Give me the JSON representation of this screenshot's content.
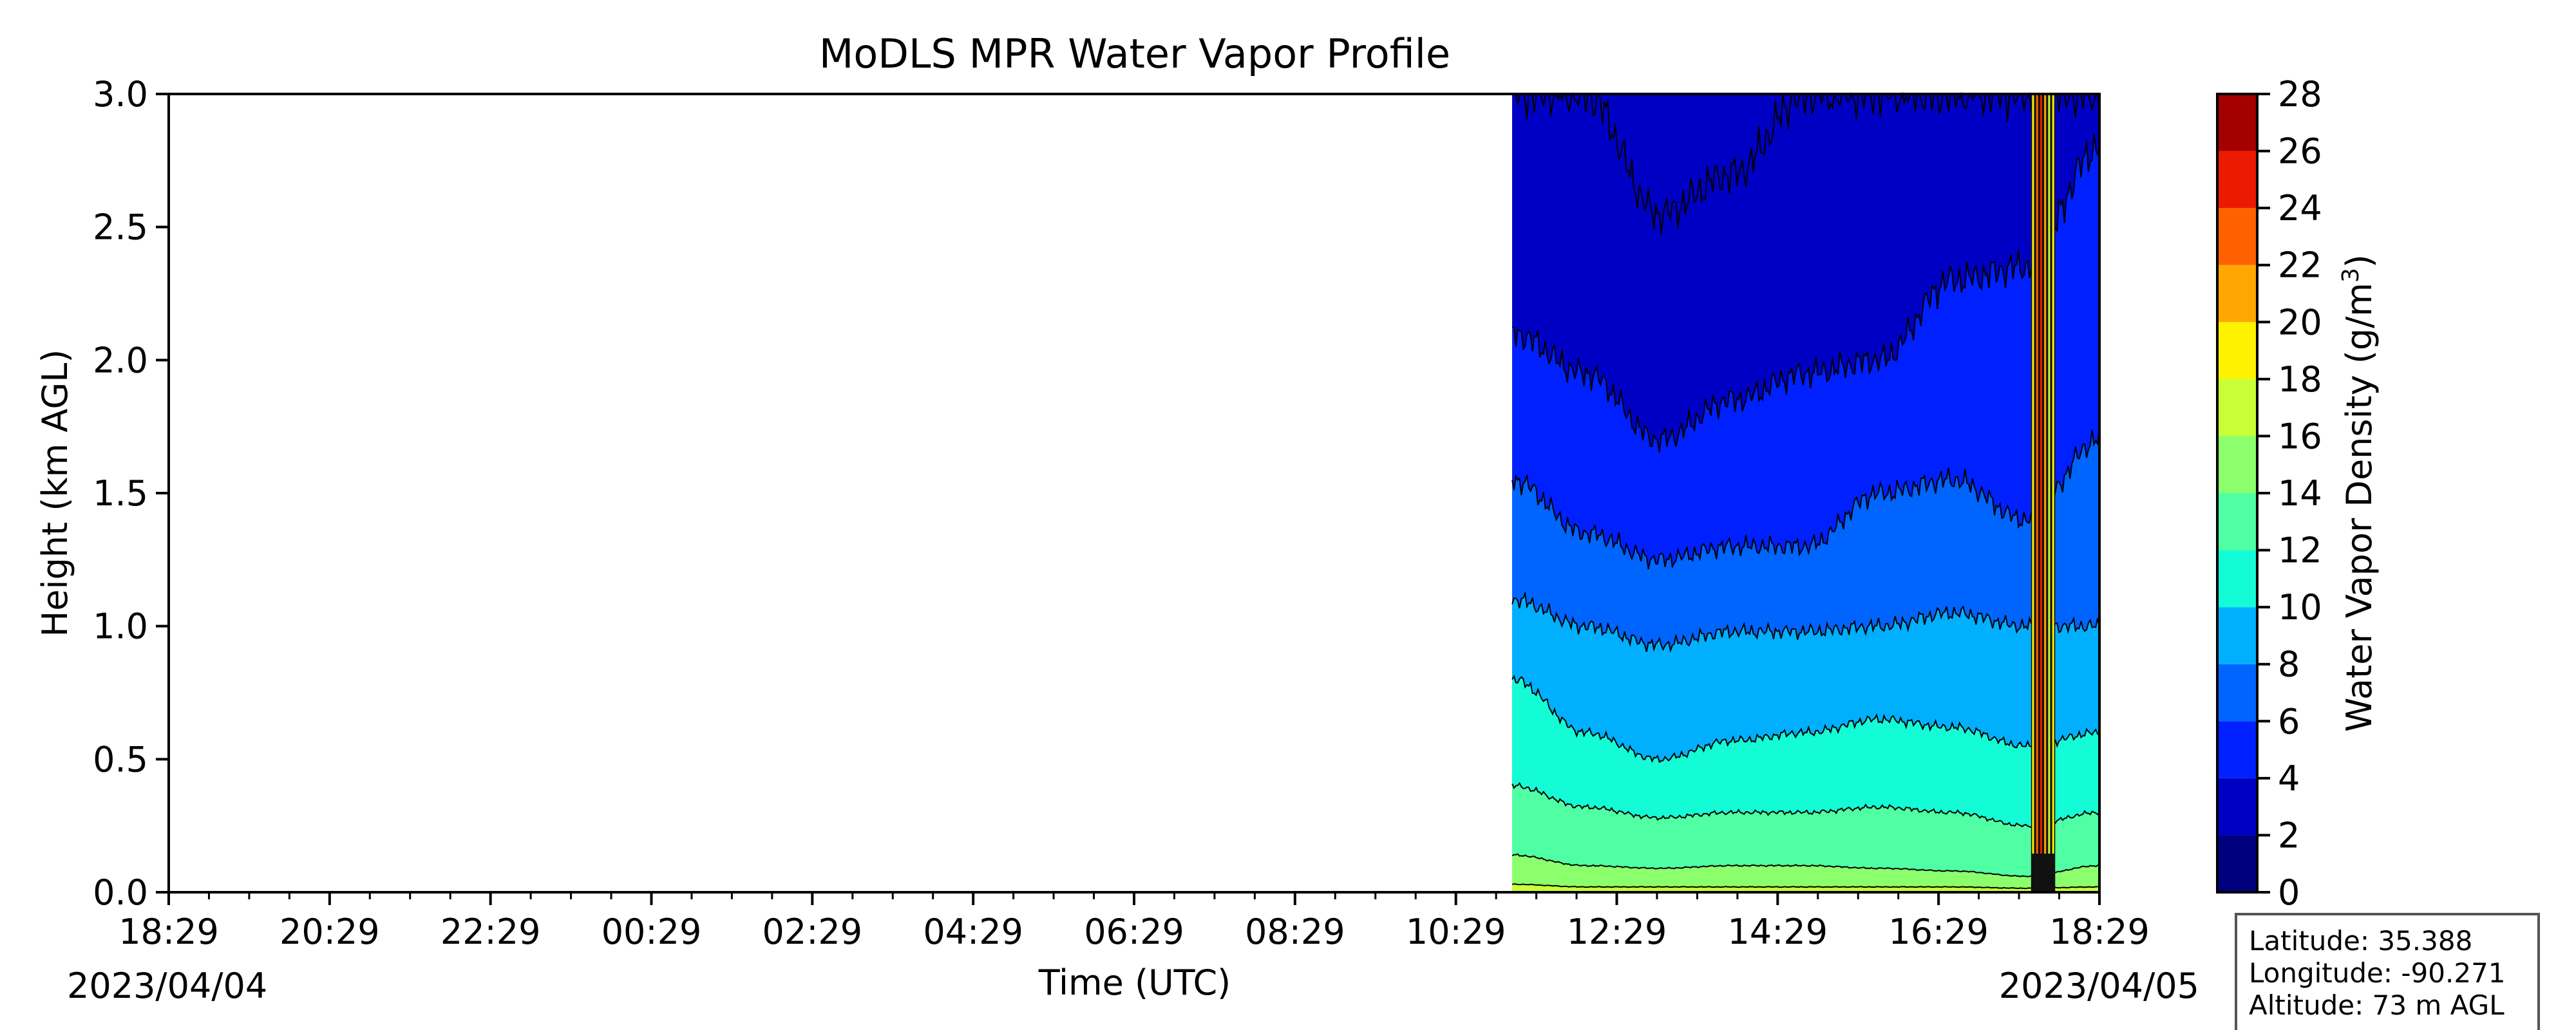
{
  "chart_data": {
    "type": "heatmap",
    "title": "MoDLS MPR Water Vapor Profile",
    "xlabel": "Time (UTC)",
    "ylabel": "Height (km AGL)",
    "x_ticks": [
      "18:29",
      "20:29",
      "22:29",
      "00:29",
      "02:29",
      "04:29",
      "06:29",
      "08:29",
      "10:29",
      "12:29",
      "14:29",
      "16:29",
      "18:29"
    ],
    "x_start_date": "2023/04/04",
    "x_end_date": "2023/04/05",
    "x_range_hours": [
      0,
      24
    ],
    "ylim": [
      0,
      3.0
    ],
    "y_ticks": [
      "0.0",
      "0.5",
      "1.0",
      "1.5",
      "2.0",
      "2.5",
      "3.0"
    ],
    "data_start_hour": 16.7,
    "grid": false,
    "colorbar": {
      "label": "Water Vapor Density (g/m",
      "label_sup": "3",
      "label_tail": ")",
      "levels": [
        0,
        2,
        4,
        6,
        8,
        10,
        12,
        14,
        16,
        18,
        20,
        22,
        24,
        26,
        28
      ],
      "tick_labels": [
        "0",
        "2",
        "4",
        "6",
        "8",
        "10",
        "12",
        "14",
        "16",
        "18",
        "20",
        "22",
        "24",
        "26",
        "28"
      ],
      "colors": [
        "#00007f",
        "#0000c4",
        "#0020ff",
        "#0064ff",
        "#00b0ff",
        "#14fcd6",
        "#50ffa3",
        "#8cff6c",
        "#c8ff36",
        "#fff200",
        "#ffa700",
        "#ff6100",
        "#ec1a00",
        "#a40000"
      ]
    },
    "contour_tops_km": [
      {
        "level": 2,
        "values": [
          3.0,
          3.0,
          2.55,
          2.7,
          3.0,
          3.0,
          3.0,
          3.0,
          3.0
        ]
      },
      {
        "level": 4,
        "values": [
          2.1,
          1.95,
          1.7,
          1.85,
          1.95,
          2.0,
          2.3,
          2.35,
          2.8
        ]
      },
      {
        "level": 6,
        "values": [
          1.55,
          1.35,
          1.25,
          1.3,
          1.3,
          1.5,
          1.55,
          1.4,
          1.7
        ]
      },
      {
        "level": 8,
        "values": [
          1.1,
          1.0,
          0.93,
          0.98,
          0.98,
          1.0,
          1.05,
          1.0,
          1.0
        ]
      },
      {
        "level": 10,
        "values": [
          0.8,
          0.6,
          0.5,
          0.57,
          0.6,
          0.65,
          0.62,
          0.55,
          0.6
        ]
      },
      {
        "level": 12,
        "values": [
          0.4,
          0.32,
          0.28,
          0.3,
          0.3,
          0.32,
          0.3,
          0.25,
          0.3
        ]
      },
      {
        "level": 14,
        "values": [
          0.14,
          0.1,
          0.09,
          0.1,
          0.1,
          0.09,
          0.08,
          0.06,
          0.1
        ]
      },
      {
        "level": 16,
        "values": [
          0.03,
          0.02,
          0.02,
          0.02,
          0.02,
          0.02,
          0.02,
          0.015,
          0.02
        ]
      }
    ],
    "rain_spike_hours": [
      23.15,
      23.45
    ]
  },
  "info_box": {
    "latitude": "Latitude: 35.388",
    "longitude": "Longitude: -90.271",
    "altitude": "Altitude: 73 m AGL"
  }
}
